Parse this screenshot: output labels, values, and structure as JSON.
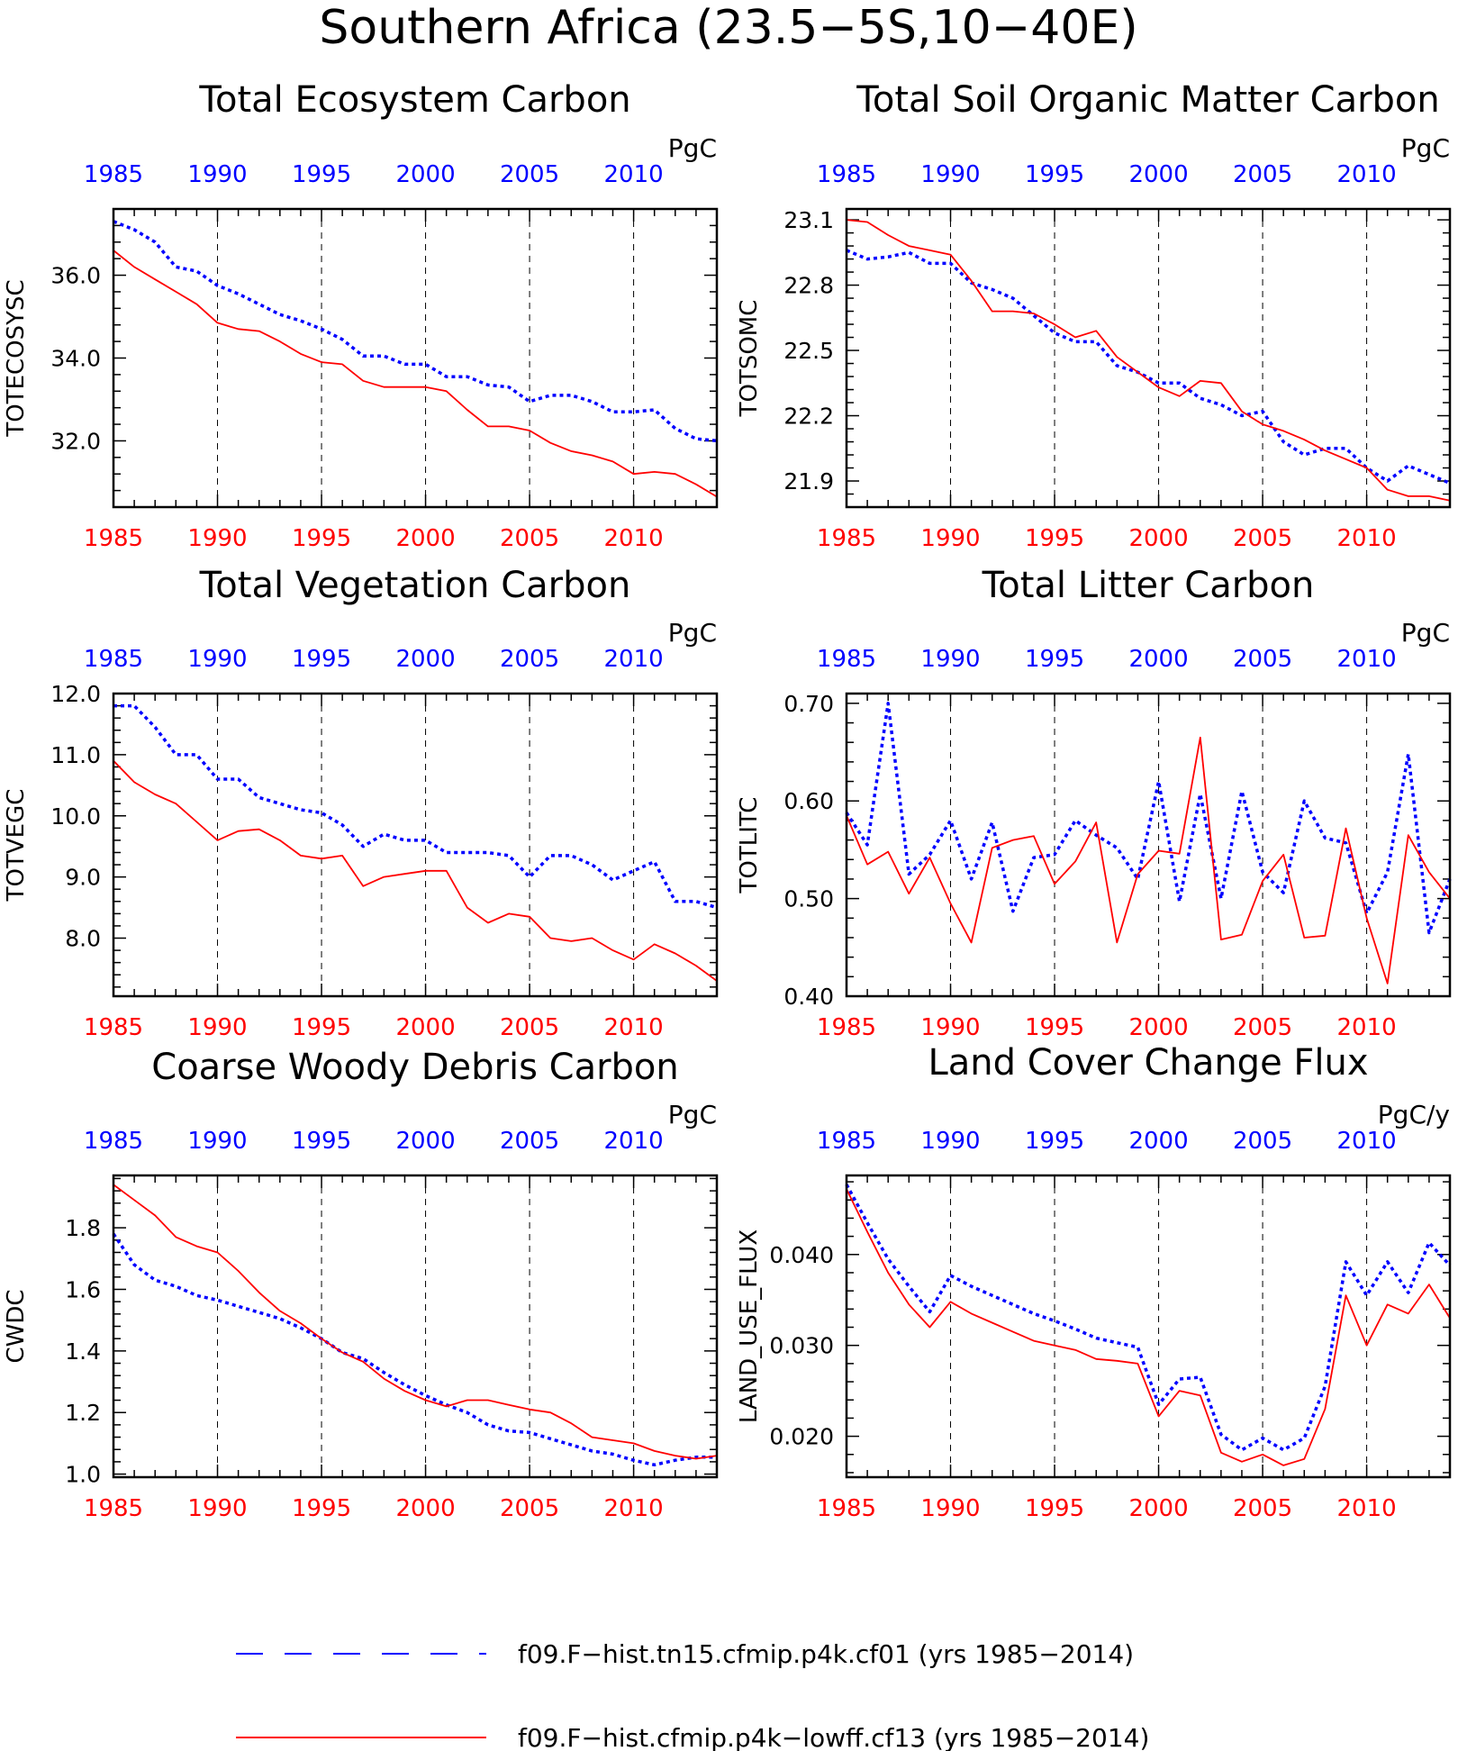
{
  "figure": {
    "title": "Southern Africa (23.5−5S,10−40E)"
  },
  "colors": {
    "series_blue": "#0000ff",
    "series_red": "#ff0000",
    "axis": "#000000",
    "grid": "#000000"
  },
  "legend": {
    "entries": [
      {
        "label": "f09.F−hist.tn15.cfmip.p4k.cf01 (yrs 1985−2014)",
        "style": "dashed",
        "color": "#0000ff"
      },
      {
        "label": "f09.F−hist.cfmip.p4k−lowff.cf13 (yrs 1985−2014)",
        "style": "solid",
        "color": "#ff0000"
      }
    ]
  },
  "chart_data": [
    {
      "type": "line",
      "title": "Total Ecosystem Carbon",
      "ylabel": "TOTECOSYSC",
      "units": "PgC",
      "xlim": [
        1985,
        2014
      ],
      "ylim": [
        30.4,
        37.6
      ],
      "yticks": [
        "32.0",
        "34.0",
        "36.0"
      ],
      "ytick_values": [
        32,
        34,
        36
      ],
      "xticks": [
        "1985",
        "1990",
        "1995",
        "2000",
        "2005",
        "2010"
      ],
      "x": [
        1985,
        1986,
        1987,
        1988,
        1989,
        1990,
        1991,
        1992,
        1993,
        1994,
        1995,
        1996,
        1997,
        1998,
        1999,
        2000,
        2001,
        2002,
        2003,
        2004,
        2005,
        2006,
        2007,
        2008,
        2009,
        2010,
        2011,
        2012,
        2013,
        2014
      ],
      "series": [
        {
          "values": [
            37.3,
            37.1,
            36.8,
            36.2,
            36.1,
            35.75,
            35.55,
            35.3,
            35.05,
            34.9,
            34.7,
            34.45,
            34.05,
            34.05,
            33.85,
            33.85,
            33.55,
            33.55,
            33.35,
            33.3,
            32.95,
            33.1,
            33.1,
            32.95,
            32.7,
            32.7,
            32.75,
            32.3,
            32.05,
            32.0
          ],
          "color": "#0000ff",
          "style": "dashed"
        },
        {
          "values": [
            36.6,
            36.2,
            35.9,
            35.6,
            35.3,
            34.85,
            34.7,
            34.65,
            34.4,
            34.1,
            33.9,
            33.85,
            33.45,
            33.3,
            33.3,
            33.3,
            33.2,
            32.75,
            32.35,
            32.35,
            32.25,
            31.95,
            31.75,
            31.65,
            31.5,
            31.2,
            31.25,
            31.2,
            30.95,
            30.65
          ],
          "color": "#ff0000",
          "style": "solid"
        }
      ]
    },
    {
      "type": "line",
      "title": "Total Soil Organic Matter Carbon",
      "ylabel": "TOTSOMC",
      "units": "PgC",
      "xlim": [
        1985,
        2014
      ],
      "ylim": [
        21.78,
        23.15
      ],
      "yticks": [
        "21.9",
        "22.2",
        "22.5",
        "22.8",
        "23.1"
      ],
      "ytick_values": [
        21.9,
        22.2,
        22.5,
        22.8,
        23.1
      ],
      "xticks": [
        "1985",
        "1990",
        "1995",
        "2000",
        "2005",
        "2010"
      ],
      "x": [
        1985,
        1986,
        1987,
        1988,
        1989,
        1990,
        1991,
        1992,
        1993,
        1994,
        1995,
        1996,
        1997,
        1998,
        1999,
        2000,
        2001,
        2002,
        2003,
        2004,
        2005,
        2006,
        2007,
        2008,
        2009,
        2010,
        2011,
        2012,
        2013,
        2014
      ],
      "series": [
        {
          "values": [
            22.96,
            22.92,
            22.93,
            22.95,
            22.9,
            22.9,
            22.81,
            22.78,
            22.74,
            22.66,
            22.58,
            22.54,
            22.54,
            22.43,
            22.4,
            22.35,
            22.35,
            22.28,
            22.25,
            22.2,
            22.22,
            22.08,
            22.02,
            22.05,
            22.05,
            21.96,
            21.9,
            21.97,
            21.93,
            21.89
          ],
          "color": "#0000ff",
          "style": "dashed"
        },
        {
          "values": [
            23.1,
            23.09,
            23.03,
            22.98,
            22.96,
            22.94,
            22.82,
            22.68,
            22.68,
            22.67,
            22.62,
            22.56,
            22.59,
            22.47,
            22.4,
            22.33,
            22.29,
            22.36,
            22.35,
            22.22,
            22.16,
            22.13,
            22.09,
            22.04,
            22.0,
            21.96,
            21.86,
            21.83,
            21.83,
            21.81
          ],
          "color": "#ff0000",
          "style": "solid"
        }
      ]
    },
    {
      "type": "line",
      "title": "Total Vegetation Carbon",
      "ylabel": "TOTVEGC",
      "units": "PgC",
      "xlim": [
        1985,
        2014
      ],
      "ylim": [
        7.05,
        12.0
      ],
      "yticks": [
        "8.0",
        "9.0",
        "10.0",
        "11.0",
        "12.0"
      ],
      "ytick_values": [
        8,
        9,
        10,
        11,
        12
      ],
      "xticks": [
        "1985",
        "1990",
        "1995",
        "2000",
        "2005",
        "2010"
      ],
      "x": [
        1985,
        1986,
        1987,
        1988,
        1989,
        1990,
        1991,
        1992,
        1993,
        1994,
        1995,
        1996,
        1997,
        1998,
        1999,
        2000,
        2001,
        2002,
        2003,
        2004,
        2005,
        2006,
        2007,
        2008,
        2009,
        2010,
        2011,
        2012,
        2013,
        2014
      ],
      "series": [
        {
          "values": [
            11.8,
            11.8,
            11.45,
            11.0,
            11.0,
            10.6,
            10.6,
            10.3,
            10.2,
            10.1,
            10.05,
            9.85,
            9.5,
            9.7,
            9.6,
            9.6,
            9.4,
            9.4,
            9.4,
            9.35,
            9.0,
            9.35,
            9.35,
            9.2,
            8.95,
            9.1,
            9.25,
            8.6,
            8.6,
            8.5
          ],
          "color": "#0000ff",
          "style": "dashed"
        },
        {
          "values": [
            10.9,
            10.55,
            10.35,
            10.2,
            9.9,
            9.6,
            9.75,
            9.78,
            9.6,
            9.35,
            9.3,
            9.35,
            8.85,
            9.0,
            9.05,
            9.1,
            9.1,
            8.5,
            8.25,
            8.4,
            8.35,
            8.0,
            7.95,
            8.0,
            7.8,
            7.65,
            7.9,
            7.75,
            7.55,
            7.3
          ],
          "color": "#ff0000",
          "style": "solid"
        }
      ]
    },
    {
      "type": "line",
      "title": "Total Litter Carbon",
      "ylabel": "TOTLITC",
      "units": "PgC",
      "xlim": [
        1985,
        2014
      ],
      "ylim": [
        0.4,
        0.71
      ],
      "yticks": [
        "0.40",
        "0.50",
        "0.60",
        "0.70"
      ],
      "ytick_values": [
        0.4,
        0.5,
        0.6,
        0.7
      ],
      "xticks": [
        "1985",
        "1990",
        "1995",
        "2000",
        "2005",
        "2010"
      ],
      "x": [
        1985,
        1986,
        1987,
        1988,
        1989,
        1990,
        1991,
        1992,
        1993,
        1994,
        1995,
        1996,
        1997,
        1998,
        1999,
        2000,
        2001,
        2002,
        2003,
        2004,
        2005,
        2006,
        2007,
        2008,
        2009,
        2010,
        2011,
        2012,
        2013,
        2014
      ],
      "series": [
        {
          "values": [
            0.588,
            0.555,
            0.7,
            0.525,
            0.545,
            0.58,
            0.52,
            0.578,
            0.487,
            0.542,
            0.545,
            0.58,
            0.565,
            0.552,
            0.52,
            0.62,
            0.497,
            0.607,
            0.5,
            0.61,
            0.527,
            0.506,
            0.6,
            0.562,
            0.557,
            0.485,
            0.527,
            0.648,
            0.465,
            0.52
          ],
          "color": "#0000ff",
          "style": "dashed"
        },
        {
          "values": [
            0.585,
            0.535,
            0.548,
            0.505,
            0.542,
            0.495,
            0.455,
            0.552,
            0.56,
            0.564,
            0.515,
            0.538,
            0.578,
            0.455,
            0.525,
            0.549,
            0.546,
            0.665,
            0.458,
            0.463,
            0.518,
            0.545,
            0.46,
            0.462,
            0.572,
            0.48,
            0.413,
            0.565,
            0.527,
            0.5
          ],
          "color": "#ff0000",
          "style": "solid"
        }
      ]
    },
    {
      "type": "line",
      "title": "Coarse Woody Debris Carbon",
      "ylabel": "CWDC",
      "units": "PgC",
      "xlim": [
        1985,
        2014
      ],
      "ylim": [
        0.99,
        1.97
      ],
      "yticks": [
        "1.0",
        "1.2",
        "1.4",
        "1.6",
        "1.8"
      ],
      "ytick_values": [
        1.0,
        1.2,
        1.4,
        1.6,
        1.8
      ],
      "xticks": [
        "1985",
        "1990",
        "1995",
        "2000",
        "2005",
        "2010"
      ],
      "x": [
        1985,
        1986,
        1987,
        1988,
        1989,
        1990,
        1991,
        1992,
        1993,
        1994,
        1995,
        1996,
        1997,
        1998,
        1999,
        2000,
        2001,
        2002,
        2003,
        2004,
        2005,
        2006,
        2007,
        2008,
        2009,
        2010,
        2011,
        2012,
        2013,
        2014
      ],
      "series": [
        {
          "values": [
            1.78,
            1.68,
            1.63,
            1.61,
            1.58,
            1.565,
            1.545,
            1.525,
            1.505,
            1.475,
            1.44,
            1.395,
            1.375,
            1.33,
            1.29,
            1.255,
            1.225,
            1.2,
            1.16,
            1.14,
            1.135,
            1.115,
            1.095,
            1.075,
            1.065,
            1.045,
            1.03,
            1.045,
            1.055,
            1.055
          ],
          "color": "#0000ff",
          "style": "dashed"
        },
        {
          "values": [
            1.94,
            1.89,
            1.84,
            1.77,
            1.74,
            1.72,
            1.66,
            1.59,
            1.53,
            1.49,
            1.44,
            1.395,
            1.365,
            1.31,
            1.27,
            1.24,
            1.22,
            1.24,
            1.24,
            1.225,
            1.21,
            1.2,
            1.165,
            1.12,
            1.11,
            1.1,
            1.075,
            1.06,
            1.05,
            1.06
          ],
          "color": "#ff0000",
          "style": "solid"
        }
      ]
    },
    {
      "type": "line",
      "title": "Land Cover Change Flux",
      "ylabel": "LAND_USE_FLUX",
      "units": "PgC/y",
      "xlim": [
        1985,
        2014
      ],
      "ylim": [
        0.0155,
        0.0487
      ],
      "yticks": [
        "0.020",
        "0.030",
        "0.040"
      ],
      "ytick_values": [
        0.02,
        0.03,
        0.04
      ],
      "xticks": [
        "1985",
        "1990",
        "1995",
        "2000",
        "2005",
        "2010"
      ],
      "x": [
        1985,
        1986,
        1987,
        1988,
        1989,
        1990,
        1991,
        1992,
        1993,
        1994,
        1995,
        1996,
        1997,
        1998,
        1999,
        2000,
        2001,
        2002,
        2003,
        2004,
        2005,
        2006,
        2007,
        2008,
        2009,
        2010,
        2011,
        2012,
        2013,
        2014
      ],
      "series": [
        {
          "values": [
            0.0477,
            0.0435,
            0.0395,
            0.0365,
            0.0337,
            0.0377,
            0.0365,
            0.0355,
            0.0345,
            0.0335,
            0.0327,
            0.0318,
            0.0308,
            0.0303,
            0.0298,
            0.0235,
            0.0263,
            0.0265,
            0.0202,
            0.0185,
            0.0198,
            0.0185,
            0.0198,
            0.0255,
            0.0392,
            0.0355,
            0.0392,
            0.0358,
            0.0413,
            0.0388
          ],
          "color": "#0000ff",
          "style": "dashed"
        },
        {
          "values": [
            0.0472,
            0.0425,
            0.038,
            0.0345,
            0.032,
            0.0348,
            0.0335,
            0.0325,
            0.0315,
            0.0305,
            0.03,
            0.0295,
            0.0285,
            0.0283,
            0.028,
            0.0222,
            0.025,
            0.0245,
            0.0182,
            0.0172,
            0.018,
            0.0168,
            0.0175,
            0.023,
            0.0355,
            0.03,
            0.0345,
            0.0335,
            0.0367,
            0.033
          ],
          "color": "#ff0000",
          "style": "solid"
        }
      ]
    }
  ]
}
